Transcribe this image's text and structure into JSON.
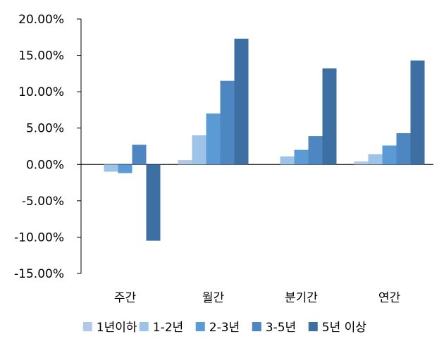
{
  "chart_data": {
    "type": "bar",
    "categories": [
      "주간",
      "월간",
      "분기간",
      "연간"
    ],
    "series": [
      {
        "name": "1년이하",
        "color": "#b4c7e7",
        "values": [
          0.0,
          0.6,
          0.0,
          0.4
        ]
      },
      {
        "name": "1-2년",
        "color": "#9dc3e6",
        "values": [
          -1.0,
          4.0,
          1.1,
          1.4
        ]
      },
      {
        "name": "2-3년",
        "color": "#5b9bd5",
        "values": [
          -1.2,
          7.0,
          2.0,
          2.6
        ]
      },
      {
        "name": "3-5년",
        "color": "#4d86c1",
        "values": [
          2.7,
          11.5,
          3.9,
          4.3
        ]
      },
      {
        "name": "5년 이상",
        "color": "#3e6fa3",
        "values": [
          -10.5,
          17.3,
          13.2,
          14.3
        ]
      }
    ],
    "yticks": [
      "20.00%",
      "15.00%",
      "10.00%",
      "5.00%",
      "0.00%",
      "-5.00%",
      "-10.00%",
      "-15.00%"
    ],
    "ylim": [
      -15,
      20
    ],
    "grid": false,
    "legend_position": "bottom"
  }
}
